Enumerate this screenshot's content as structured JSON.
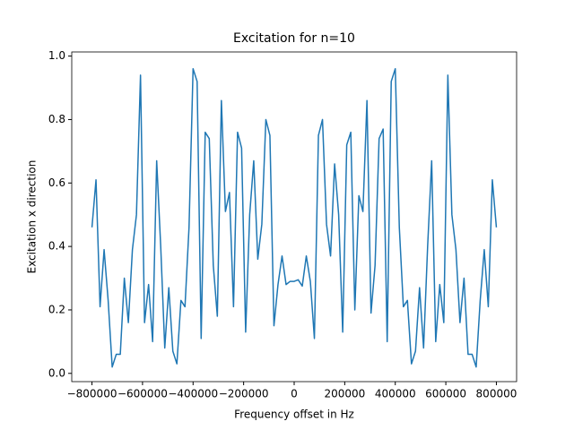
{
  "chart_data": {
    "type": "line",
    "title": "Excitation for n=10",
    "x_label": "Frequency offset in Hz",
    "y_label": "Excitation x direction",
    "x": [
      -800000,
      -784000,
      -768000,
      -752000,
      -736000,
      -720000,
      -704000,
      -688000,
      -672000,
      -656000,
      -640000,
      -624000,
      -608000,
      -592000,
      -576000,
      -560000,
      -544000,
      -528000,
      -512000,
      -496000,
      -480000,
      -464000,
      -448000,
      -432000,
      -416000,
      -400000,
      -384000,
      -368000,
      -352000,
      -336000,
      -320000,
      -304000,
      -288000,
      -272000,
      -256000,
      -240000,
      -224000,
      -208000,
      -192000,
      -176000,
      -160000,
      -144000,
      -128000,
      -112000,
      -96000,
      -80000,
      -64000,
      -48000,
      -32000,
      -16000,
      0,
      16000,
      32000,
      48000,
      64000,
      80000,
      96000,
      112000,
      128000,
      144000,
      160000,
      176000,
      192000,
      208000,
      224000,
      240000,
      256000,
      272000,
      288000,
      304000,
      320000,
      336000,
      352000,
      368000,
      384000,
      400000,
      416000,
      432000,
      448000,
      464000,
      480000,
      496000,
      512000,
      528000,
      544000,
      560000,
      576000,
      592000,
      608000,
      624000,
      640000,
      656000,
      672000,
      688000,
      704000,
      720000,
      736000,
      752000,
      768000,
      784000,
      800000
    ],
    "series": [
      {
        "color": "#1f77b4",
        "values": [
          0.46,
          0.61,
          0.21,
          0.39,
          0.23,
          0.02,
          0.06,
          0.06,
          0.3,
          0.16,
          0.39,
          0.5,
          0.94,
          0.16,
          0.28,
          0.1,
          0.67,
          0.4,
          0.08,
          0.27,
          0.07,
          0.03,
          0.23,
          0.21,
          0.46,
          0.96,
          0.92,
          0.11,
          0.76,
          0.74,
          0.34,
          0.18,
          0.86,
          0.51,
          0.57,
          0.21,
          0.76,
          0.71,
          0.13,
          0.5,
          0.67,
          0.36,
          0.47,
          0.8,
          0.75,
          0.15,
          0.28,
          0.37,
          0.28,
          0.29,
          0.29,
          0.295,
          0.275,
          0.37,
          0.29,
          0.11,
          0.75,
          0.8,
          0.47,
          0.37,
          0.66,
          0.5,
          0.13,
          0.72,
          0.76,
          0.2,
          0.56,
          0.51,
          0.86,
          0.19,
          0.34,
          0.74,
          0.77,
          0.1,
          0.92,
          0.96,
          0.46,
          0.21,
          0.23,
          0.03,
          0.07,
          0.27,
          0.08,
          0.4,
          0.67,
          0.1,
          0.28,
          0.16,
          0.94,
          0.5,
          0.39,
          0.16,
          0.3,
          0.06,
          0.06,
          0.02,
          0.23,
          0.39,
          0.21,
          0.61,
          0.46
        ]
      }
    ],
    "xlim": [
      -880000,
      880000
    ],
    "xticks": [
      {
        "value": -800000,
        "label": "−800000"
      },
      {
        "value": -600000,
        "label": "−600000"
      },
      {
        "value": -400000,
        "label": "−400000"
      },
      {
        "value": -200000,
        "label": "−200000"
      },
      0,
      200000,
      400000,
      600000,
      800000
    ],
    "ylim": [
      -0.026,
      1.013
    ],
    "yticks": [
      {
        "value": 0,
        "label": "0.0"
      },
      0.2,
      0.4,
      0.6,
      0.8,
      {
        "value": 1,
        "label": "1.0"
      }
    ],
    "grid": false
  }
}
